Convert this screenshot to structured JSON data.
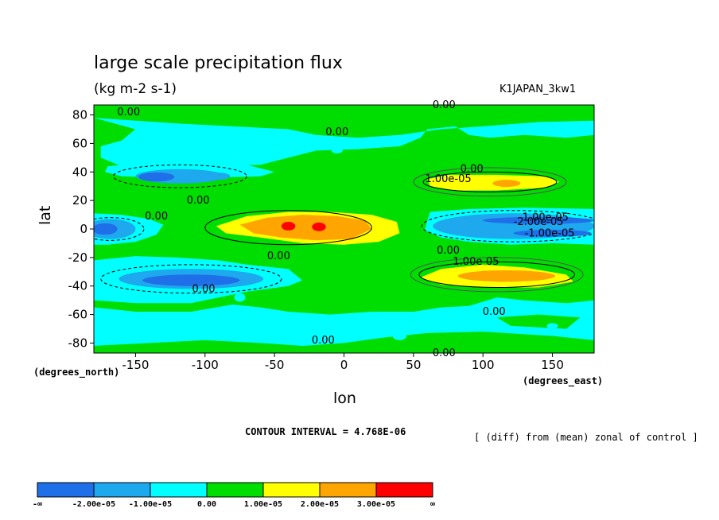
{
  "chart_data": {
    "type": "heatmap",
    "title": "large scale precipitation flux",
    "units": "(kg m-2 s-1)",
    "experiment": "K1JAPAN_3kw1",
    "xlabel": "lon",
    "ylabel": "lat",
    "x_units": "(degrees_east)",
    "y_units": "(degrees_north)",
    "xlim": [
      -180,
      180
    ],
    "ylim": [
      -87,
      87
    ],
    "x_ticks": [
      -150,
      -100,
      -50,
      0,
      50,
      100,
      150
    ],
    "x_tick_labels": [
      "-150",
      "-100",
      "-50",
      "0",
      "50",
      "100",
      "150"
    ],
    "y_ticks": [
      80,
      60,
      40,
      20,
      0,
      -20,
      -40,
      -60,
      -80
    ],
    "y_tick_labels": [
      "80",
      "60",
      "40",
      "20",
      "0",
      "-20",
      "-40",
      "-60",
      "-80"
    ],
    "contour_interval": "CONTOUR INTERVAL = 4.768E-06",
    "note": "[ (diff) from (mean) zonal of control ]",
    "colorbar": {
      "boundaries": [
        "-∞",
        "-2.00e-05",
        "-1.00e-05",
        "0.00",
        "1.00e-05",
        "2.00e-05",
        "3.00e-05",
        "∞"
      ],
      "colors": [
        "#1e6fe8",
        "#1ea8ee",
        "#00ffff",
        "#00dd00",
        "#ffff00",
        "#ffa500",
        "#ff0000"
      ]
    },
    "regions": [
      {
        "level": -1,
        "lon": [
          -180,
          180
        ],
        "lat": [
          87,
          87
        ],
        "shape": "band-north"
      },
      {
        "level": 1,
        "lon": [
          60,
          160
        ],
        "lat": [
          25,
          38
        ],
        "value_max": 3e-05
      },
      {
        "level": 1,
        "lon": [
          -95,
          40
        ],
        "lat": [
          -10,
          12
        ],
        "value_max": 3e-05
      },
      {
        "level": 1,
        "lon": [
          60,
          160
        ],
        "lat": [
          -40,
          -24
        ],
        "value_max": 3e-05
      },
      {
        "level": -1,
        "lon": [
          -170,
          -50
        ],
        "lat": [
          28,
          48
        ],
        "value_min": -2e-05
      },
      {
        "level": -1,
        "lon": [
          -170,
          -40
        ],
        "lat": [
          -48,
          -28
        ],
        "value_min": -2e-05
      },
      {
        "level": -1,
        "lon": [
          -180,
          -120
        ],
        "lat": [
          -10,
          10
        ],
        "value_min": -2e-05
      },
      {
        "level": -1,
        "lon": [
          60,
          180
        ],
        "lat": [
          -8,
          14
        ],
        "value_min": -2e-05
      }
    ],
    "contour_labels": [
      {
        "text": "0.00",
        "lon": -155,
        "lat": 82
      },
      {
        "text": "0.00",
        "lon": -5,
        "lat": 68
      },
      {
        "text": "0.00",
        "lon": 72,
        "lat": 87
      },
      {
        "text": "0.00",
        "lon": 92,
        "lat": 42
      },
      {
        "text": "1.00e-05",
        "lon": 75,
        "lat": 35
      },
      {
        "text": "0.00",
        "lon": -105,
        "lat": 20
      },
      {
        "text": "0.00",
        "lon": -135,
        "lat": 9
      },
      {
        "text": "1.00e-05",
        "lon": 145,
        "lat": 8
      },
      {
        "text": "-2.00e-05",
        "lon": 140,
        "lat": 5
      },
      {
        "text": "-1.00e-05",
        "lon": 148,
        "lat": -3
      },
      {
        "text": "0.00",
        "lon": 75,
        "lat": -15
      },
      {
        "text": "0.00",
        "lon": -47,
        "lat": -19
      },
      {
        "text": "1.00e-05",
        "lon": 95,
        "lat": -23
      },
      {
        "text": "0.00",
        "lon": -101,
        "lat": -42
      },
      {
        "text": "0.00",
        "lon": 108,
        "lat": -58
      },
      {
        "text": "0.00",
        "lon": -15,
        "lat": -78
      },
      {
        "text": "0.00",
        "lon": 72,
        "lat": -87
      }
    ]
  }
}
